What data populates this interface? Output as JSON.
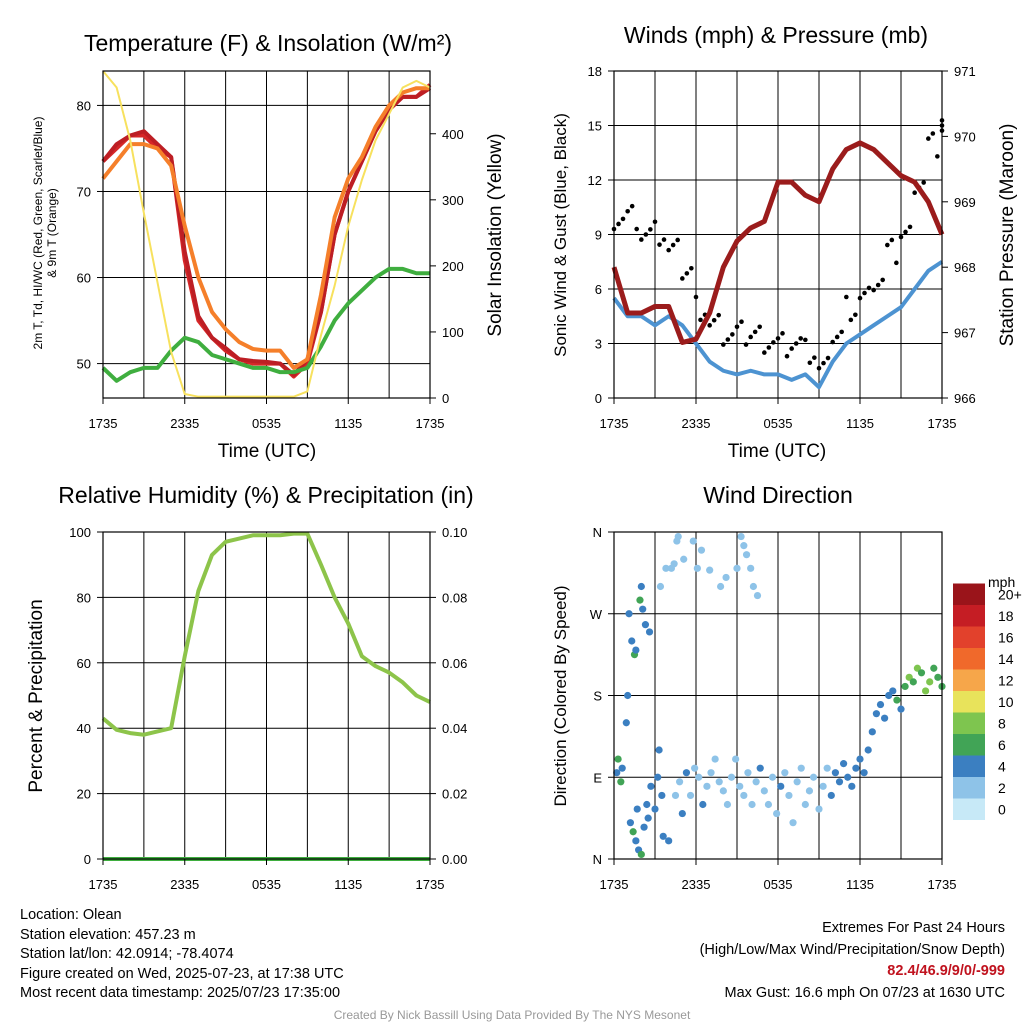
{
  "panels": {
    "temp": {
      "title": "Temperature (F) & Insolation (W/m²)",
      "xlabel": "Time (UTC)",
      "ylabel_line1": "2m T, Td, HI/WC (Red, Green, Scarlet/Blue)",
      "ylabel_line2": "& 9m T (Orange)",
      "ylabel_right": "Solar Insolation (Yellow)"
    },
    "wind": {
      "title": "Winds (mph) & Pressure (mb)",
      "xlabel": "Time (UTC)",
      "ylabel": "Sonic Wind & Gust (Blue, Black)",
      "ylabel_right": "Station Pressure (Maroon)"
    },
    "rh": {
      "title": "Relative Humidity (%) & Precipitation (in)",
      "ylabel": "Percent & Precipitation"
    },
    "dir": {
      "title": "Wind Direction",
      "ylabel": "Direction (Colored By Speed)"
    }
  },
  "footer": {
    "location": "Location: Olean",
    "elevation": "Station elevation: 457.23 m",
    "latlon": "Station lat/lon: 42.0914; -78.4074",
    "created": "Figure created on Wed, 2025-07-23, at 17:38 UTC",
    "recent": "Most recent data timestamp: 2025/07/23 17:35:00",
    "extremes_title": "Extremes For Past 24 Hours",
    "extremes_legend": "(High/Low/Max Wind/Precipitation/Snow Depth)",
    "extremes_values": "82.4/46.9/9/0/-999",
    "max_gust": "Max Gust: 16.6 mph On 07/23 at 1630 UTC",
    "credit": "Created By Nick Bassill Using Data Provided By The NYS Mesonet"
  },
  "chart_data": [
    {
      "type": "line",
      "title": "Temperature (F) & Insolation (W/m²)",
      "xlabel": "Time (UTC)",
      "x_ticks": [
        "1735",
        "2335",
        "0535",
        "1135",
        "1735"
      ],
      "x": [
        0,
        1,
        2,
        3,
        4,
        5,
        6,
        7,
        8,
        9,
        10,
        11,
        12,
        13,
        14,
        15,
        16,
        17,
        18,
        19,
        20,
        21,
        22,
        23,
        24
      ],
      "ylim": [
        46,
        84
      ],
      "yticks": [
        50,
        60,
        70,
        80
      ],
      "y2lim": [
        0,
        495
      ],
      "y2ticks": [
        0,
        100,
        200,
        300,
        400
      ],
      "series": [
        {
          "name": "2m T",
          "color": "#d62728",
          "axis": "left",
          "values": [
            73.5,
            75,
            76.5,
            76.5,
            75,
            74,
            62,
            55,
            53,
            51.5,
            50.5,
            50,
            50,
            50,
            48.5,
            50,
            56,
            65,
            70,
            73.5,
            77,
            79.5,
            81,
            81,
            82.4
          ]
        },
        {
          "name": "HI/WC",
          "color": "#bd1e24",
          "axis": "left",
          "values": [
            73.5,
            75.5,
            76.5,
            77,
            75.5,
            74,
            63,
            55.5,
            53,
            51.8,
            50.5,
            50.3,
            50.2,
            50,
            48.7,
            50.5,
            56,
            65,
            70,
            73.5,
            77,
            79.5,
            81,
            81,
            82
          ]
        },
        {
          "name": "9m T",
          "color": "#f57f2a",
          "axis": "left",
          "values": [
            71.5,
            73.5,
            75.5,
            75.5,
            75,
            73,
            66,
            60,
            56,
            54,
            52.5,
            51.7,
            51.5,
            51.5,
            49.5,
            50.5,
            58,
            67,
            71.5,
            74,
            77.5,
            80,
            81.5,
            82,
            82
          ]
        },
        {
          "name": "Td",
          "color": "#3fae3f",
          "axis": "left",
          "values": [
            49.5,
            48,
            49,
            49.5,
            49.5,
            51.5,
            53,
            52.5,
            51,
            50.5,
            50,
            49.5,
            49.5,
            49,
            49,
            49.5,
            52,
            55,
            57,
            58.5,
            60,
            61,
            61,
            60.5,
            60.5
          ]
        },
        {
          "name": "Solar Insolation",
          "color": "#f7e15e",
          "axis": "right",
          "values": [
            495,
            470,
            390,
            280,
            175,
            70,
            6,
            2,
            2,
            2,
            2,
            2,
            2,
            2,
            2,
            10,
            95,
            170,
            260,
            330,
            390,
            430,
            470,
            480,
            470
          ]
        }
      ]
    },
    {
      "type": "line",
      "title": "Winds (mph) & Pressure (mb)",
      "xlabel": "Time (UTC)",
      "x_ticks": [
        "1735",
        "2335",
        "0535",
        "1135",
        "1735"
      ],
      "x": [
        0,
        1,
        2,
        3,
        4,
        5,
        6,
        7,
        8,
        9,
        10,
        11,
        12,
        13,
        14,
        15,
        16,
        17,
        18,
        19,
        20,
        21,
        22,
        23,
        24
      ],
      "ylim": [
        0,
        18
      ],
      "yticks": [
        0,
        3,
        6,
        9,
        12,
        15,
        18
      ],
      "y2lim": [
        966,
        971
      ],
      "y2ticks": [
        966,
        967,
        968,
        969,
        970,
        971
      ],
      "series": [
        {
          "name": "Sonic Wind",
          "color": "#4d93d1",
          "axis": "left",
          "values": [
            5.5,
            4.5,
            4.5,
            4,
            4.5,
            4,
            3,
            2,
            1.5,
            1.3,
            1.5,
            1.3,
            1.3,
            1,
            1.3,
            0.6,
            2,
            3,
            3.5,
            4,
            4.5,
            5,
            6,
            7,
            7.5
          ]
        },
        {
          "name": "Gust",
          "color": "#000000",
          "axis": "left",
          "values": [
            10,
            10,
            9,
            9,
            8,
            7,
            5,
            4,
            3.5,
            3.5,
            3.5,
            3.2,
            3,
            3,
            2.5,
            1.5,
            3.5,
            5,
            5.5,
            6.5,
            8,
            9,
            12,
            14,
            15
          ]
        },
        {
          "name": "Station Pressure",
          "color": "#9b1c1c",
          "axis": "right",
          "values": [
            968,
            967.3,
            967.3,
            967.4,
            967.4,
            966.85,
            966.9,
            967.3,
            968,
            968.4,
            968.6,
            968.7,
            969.3,
            969.3,
            969.1,
            969,
            969.5,
            969.8,
            969.9,
            969.8,
            969.6,
            969.4,
            969.3,
            969,
            968.5
          ]
        }
      ]
    },
    {
      "type": "line",
      "title": "Relative Humidity (%) & Precipitation (in)",
      "x_ticks": [
        "1735",
        "2335",
        "0535",
        "1135",
        "1735"
      ],
      "x": [
        0,
        1,
        2,
        3,
        4,
        5,
        6,
        7,
        8,
        9,
        10,
        11,
        12,
        13,
        14,
        15,
        16,
        17,
        18,
        19,
        20,
        21,
        22,
        23,
        24
      ],
      "ylim": [
        0,
        100
      ],
      "yticks": [
        0,
        20,
        40,
        60,
        80,
        100
      ],
      "y2lim": [
        0,
        0.1
      ],
      "y2ticks": [
        "0.00",
        "0.02",
        "0.04",
        "0.06",
        "0.08",
        "0.10"
      ],
      "series": [
        {
          "name": "Relative Humidity",
          "color": "#8dc44a",
          "axis": "left",
          "values": [
            43,
            39.5,
            38.5,
            38,
            39,
            40,
            62,
            82,
            93,
            97,
            98,
            99,
            99,
            99,
            99.5,
            99.5,
            90,
            80,
            72,
            62,
            59,
            57,
            54,
            50,
            48
          ]
        },
        {
          "name": "Precipitation",
          "color": "#3fae3f",
          "axis": "right",
          "values": [
            0,
            0,
            0,
            0,
            0,
            0,
            0,
            0,
            0,
            0,
            0,
            0,
            0,
            0,
            0,
            0,
            0,
            0,
            0,
            0,
            0,
            0,
            0,
            0,
            0
          ]
        }
      ]
    },
    {
      "type": "scatter",
      "title": "Wind Direction",
      "x_ticks": [
        "1735",
        "2335",
        "0535",
        "1135",
        "1735"
      ],
      "ylim": [
        0,
        360
      ],
      "yticks": [
        "N",
        "E",
        "S",
        "W",
        "N"
      ],
      "colorbar": {
        "unit": "mph",
        "labels": [
          "0",
          "2",
          "4",
          "6",
          "8",
          "10",
          "12",
          "14",
          "16",
          "18",
          "20+"
        ],
        "colors": [
          "#c7e9f7",
          "#8ec3e8",
          "#3b7fc1",
          "#41a456",
          "#7ec54f",
          "#e8e35b",
          "#f6a64a",
          "#f0692b",
          "#e2412c",
          "#c51d24",
          "#9a141a"
        ]
      },
      "points": [
        [
          0.2,
          95,
          4
        ],
        [
          0.3,
          110,
          6
        ],
        [
          0.5,
          85,
          5
        ],
        [
          0.6,
          100,
          4
        ],
        [
          0.9,
          150,
          3
        ],
        [
          1.0,
          180,
          4
        ],
        [
          1.2,
          40,
          4
        ],
        [
          1.4,
          30,
          6
        ],
        [
          1.6,
          20,
          3
        ],
        [
          1.7,
          55,
          4
        ],
        [
          1.8,
          10,
          4
        ],
        [
          2.0,
          5,
          5
        ],
        [
          2.2,
          35,
          4
        ],
        [
          2.4,
          60,
          4
        ],
        [
          2.5,
          45,
          3
        ],
        [
          2.7,
          80,
          4
        ],
        [
          3.0,
          55,
          3
        ],
        [
          3.2,
          90,
          3
        ],
        [
          3.3,
          120,
          4
        ],
        [
          3.5,
          70,
          3
        ],
        [
          3.6,
          25,
          4
        ],
        [
          4.0,
          20,
          4
        ],
        [
          4.5,
          70,
          2
        ],
        [
          4.8,
          85,
          2
        ],
        [
          5.0,
          50,
          3
        ],
        [
          5.3,
          95,
          3
        ],
        [
          5.6,
          70,
          2
        ],
        [
          5.9,
          100,
          2
        ],
        [
          6.2,
          90,
          2
        ],
        [
          6.5,
          60,
          3
        ],
        [
          6.8,
          80,
          2
        ],
        [
          7.1,
          95,
          2
        ],
        [
          7.4,
          110,
          2
        ],
        [
          7.7,
          85,
          2
        ],
        [
          8.0,
          75,
          2
        ],
        [
          8.3,
          60,
          2
        ],
        [
          8.6,
          90,
          2
        ],
        [
          8.9,
          110,
          2
        ],
        [
          9.2,
          80,
          2
        ],
        [
          9.5,
          70,
          2
        ],
        [
          9.8,
          95,
          2
        ],
        [
          10.1,
          60,
          2
        ],
        [
          10.4,
          85,
          2
        ],
        [
          10.7,
          100,
          3
        ],
        [
          11.0,
          75,
          2
        ],
        [
          11.3,
          60,
          2
        ],
        [
          11.6,
          90,
          2
        ],
        [
          11.9,
          50,
          2
        ],
        [
          12.2,
          80,
          3
        ],
        [
          12.5,
          95,
          2
        ],
        [
          12.8,
          70,
          2
        ],
        [
          13.1,
          40,
          2
        ],
        [
          13.4,
          85,
          2
        ],
        [
          13.7,
          100,
          2
        ],
        [
          14.0,
          60,
          2
        ],
        [
          14.3,
          75,
          2
        ],
        [
          14.6,
          90,
          2
        ],
        [
          15.0,
          55,
          2
        ],
        [
          15.3,
          80,
          2
        ],
        [
          15.6,
          100,
          2
        ],
        [
          15.9,
          70,
          3
        ],
        [
          16.2,
          95,
          3
        ],
        [
          16.5,
          85,
          3
        ],
        [
          16.8,
          105,
          3
        ],
        [
          17.1,
          90,
          3
        ],
        [
          17.4,
          80,
          3
        ],
        [
          17.7,
          100,
          3
        ],
        [
          18.0,
          110,
          3
        ],
        [
          18.3,
          95,
          3
        ],
        [
          18.6,
          120,
          3
        ],
        [
          18.9,
          140,
          3
        ],
        [
          19.2,
          160,
          4
        ],
        [
          19.5,
          170,
          4
        ],
        [
          19.8,
          155,
          3
        ],
        [
          20.1,
          180,
          4
        ],
        [
          20.4,
          185,
          4
        ],
        [
          20.7,
          175,
          5
        ],
        [
          21.0,
          165,
          4
        ],
        [
          21.3,
          190,
          6
        ],
        [
          21.6,
          200,
          7
        ],
        [
          21.9,
          195,
          5
        ],
        [
          22.2,
          210,
          7
        ],
        [
          22.5,
          205,
          6
        ],
        [
          22.8,
          185,
          8
        ],
        [
          23.1,
          195,
          7
        ],
        [
          23.4,
          210,
          6
        ],
        [
          23.7,
          200,
          5
        ],
        [
          24.0,
          190,
          6
        ],
        [
          1.1,
          270,
          4
        ],
        [
          1.3,
          240,
          4
        ],
        [
          1.5,
          225,
          6
        ],
        [
          1.6,
          230,
          3
        ],
        [
          1.9,
          285,
          6
        ],
        [
          2.0,
          300,
          4
        ],
        [
          2.1,
          275,
          4
        ],
        [
          2.3,
          258,
          4
        ],
        [
          2.6,
          250,
          4
        ],
        [
          3.4,
          300,
          2
        ],
        [
          3.8,
          320,
          2
        ],
        [
          4.2,
          320,
          2
        ],
        [
          4.4,
          325,
          2
        ],
        [
          4.6,
          350,
          2
        ],
        [
          4.7,
          355,
          2
        ],
        [
          5.1,
          330,
          2
        ],
        [
          5.8,
          350,
          2
        ],
        [
          6.1,
          320,
          2
        ],
        [
          6.4,
          340,
          2
        ],
        [
          7.0,
          318,
          2
        ],
        [
          7.8,
          300,
          2
        ],
        [
          8.2,
          310,
          2
        ],
        [
          9.0,
          320,
          2
        ],
        [
          9.3,
          355,
          2
        ],
        [
          9.5,
          345,
          2
        ],
        [
          9.7,
          335,
          2
        ],
        [
          10.0,
          320,
          2
        ],
        [
          10.2,
          300,
          2
        ],
        [
          10.5,
          290,
          2
        ]
      ]
    }
  ]
}
